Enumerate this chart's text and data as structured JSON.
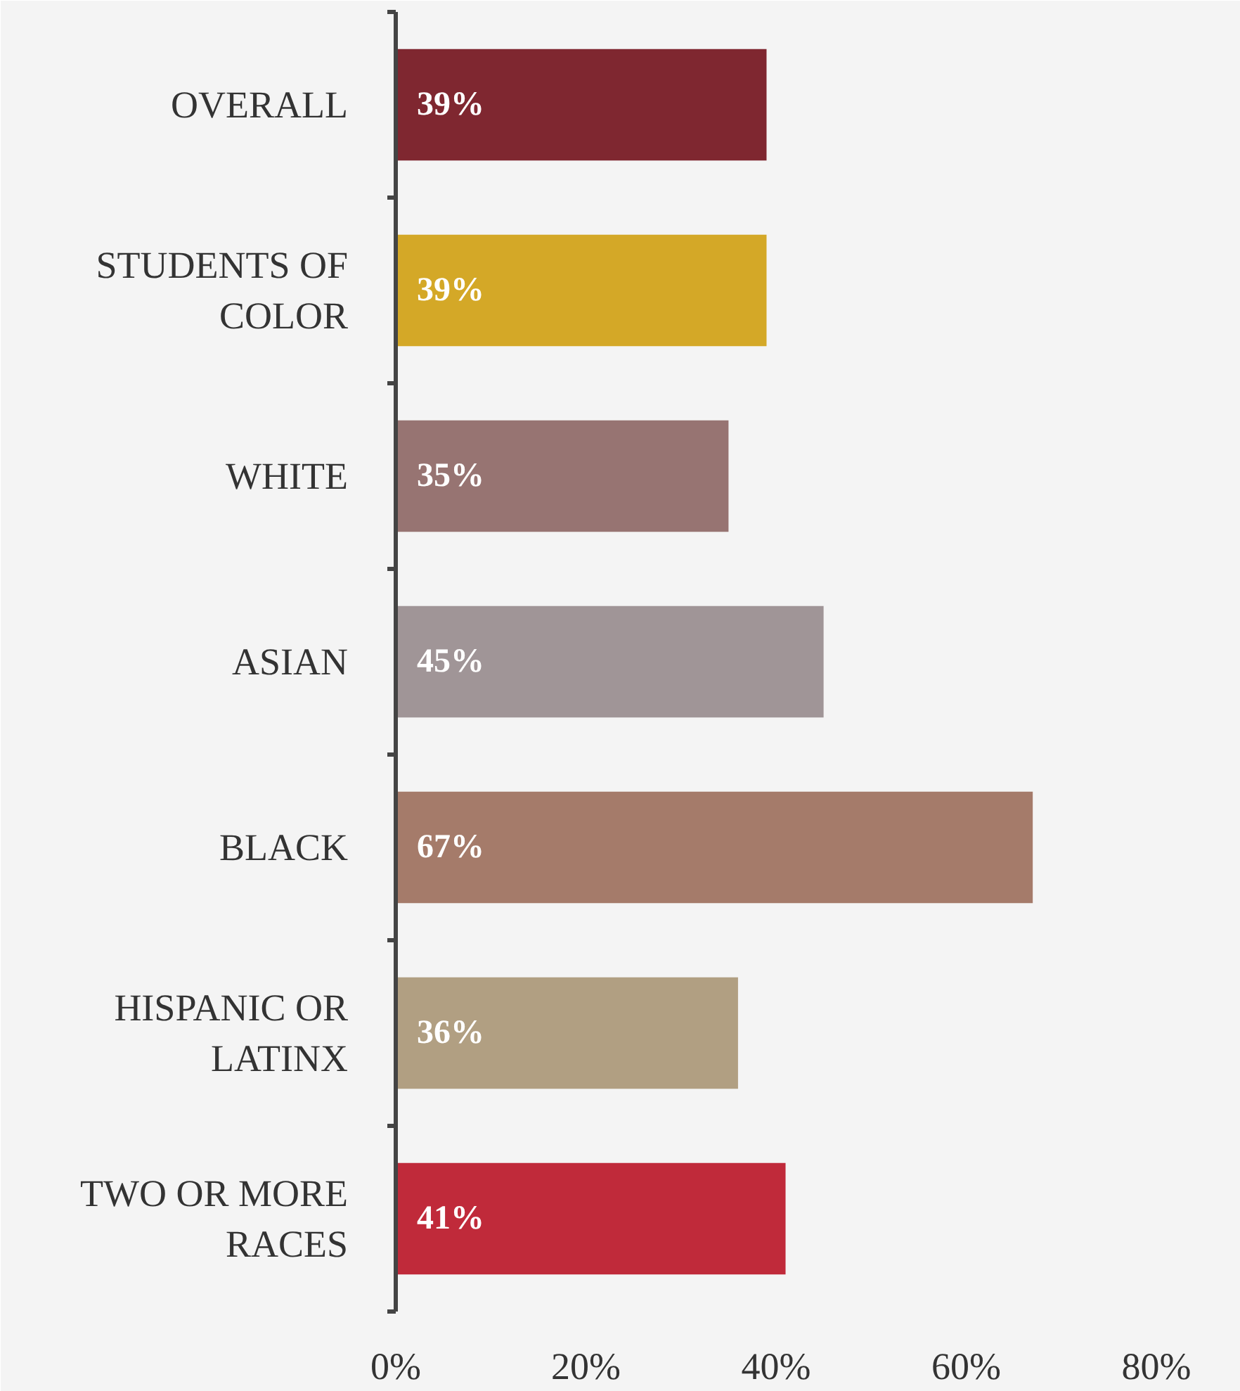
{
  "chart_data": {
    "type": "bar",
    "orientation": "horizontal",
    "categories": [
      "OVERALL",
      "STUDENTS OF COLOR",
      "WHITE",
      "ASIAN",
      "BLACK",
      "HISPANIC OR LATINX",
      "TWO OR MORE RACES"
    ],
    "values": [
      39,
      39,
      35,
      45,
      67,
      36,
      41
    ],
    "colors": [
      "#7f2730",
      "#d4a827",
      "#977472",
      "#a09597",
      "#a57b6a",
      "#b19f82",
      "#c02a3a"
    ],
    "value_labels": [
      "39%",
      "39%",
      "35%",
      "45%",
      "67%",
      "36%",
      "41%"
    ],
    "xlim": [
      0,
      80
    ],
    "xticks": [
      {
        "value": 0,
        "label": "0%"
      },
      {
        "value": 20,
        "label": "20%"
      },
      {
        "value": 40,
        "label": "40%"
      },
      {
        "value": 60,
        "label": "60%"
      },
      {
        "value": 80,
        "label": "80%"
      }
    ]
  }
}
